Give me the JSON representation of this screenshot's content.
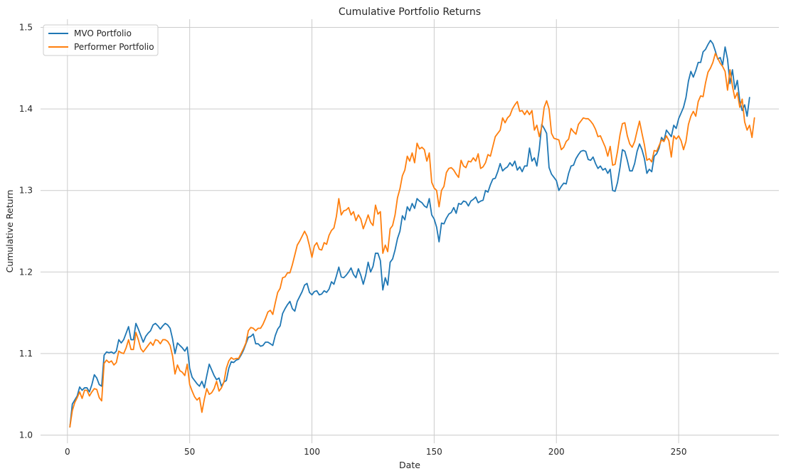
{
  "chart_data": {
    "type": "line",
    "title": "Cumulative Portfolio Returns",
    "xlabel": "Date",
    "ylabel": "Cumulative Return",
    "xlim": [
      -11,
      291
    ],
    "ylim": [
      0.99,
      1.51
    ],
    "xticks": [
      0,
      50,
      100,
      150,
      200,
      250
    ],
    "yticks": [
      1.0,
      1.1,
      1.2,
      1.3,
      1.4,
      1.5
    ],
    "ytick_labels": [
      "1.0",
      "1.1",
      "1.2",
      "1.3",
      "1.4",
      "1.5"
    ],
    "grid": true,
    "legend_position": "top-left",
    "x_start": 1,
    "x_step": 1,
    "series": [
      {
        "name": "MVO Portfolio",
        "color": "#1f77b4",
        "values": [
          1.01,
          1.038,
          1.043,
          1.048,
          1.059,
          1.055,
          1.058,
          1.058,
          1.053,
          1.062,
          1.074,
          1.07,
          1.062,
          1.06,
          1.098,
          1.102,
          1.101,
          1.102,
          1.1,
          1.103,
          1.117,
          1.113,
          1.117,
          1.125,
          1.133,
          1.117,
          1.117,
          1.137,
          1.13,
          1.122,
          1.114,
          1.121,
          1.125,
          1.128,
          1.135,
          1.137,
          1.134,
          1.13,
          1.134,
          1.137,
          1.135,
          1.131,
          1.118,
          1.1,
          1.113,
          1.11,
          1.107,
          1.103,
          1.108,
          1.082,
          1.071,
          1.067,
          1.063,
          1.06,
          1.066,
          1.058,
          1.073,
          1.087,
          1.08,
          1.073,
          1.068,
          1.07,
          1.06,
          1.065,
          1.067,
          1.082,
          1.09,
          1.089,
          1.092,
          1.093,
          1.098,
          1.104,
          1.112,
          1.12,
          1.121,
          1.124,
          1.112,
          1.112,
          1.109,
          1.11,
          1.114,
          1.114,
          1.112,
          1.11,
          1.122,
          1.13,
          1.134,
          1.149,
          1.155,
          1.16,
          1.164,
          1.155,
          1.152,
          1.164,
          1.17,
          1.176,
          1.184,
          1.186,
          1.175,
          1.172,
          1.176,
          1.177,
          1.172,
          1.173,
          1.177,
          1.175,
          1.179,
          1.188,
          1.185,
          1.195,
          1.206,
          1.194,
          1.193,
          1.196,
          1.2,
          1.205,
          1.197,
          1.193,
          1.204,
          1.196,
          1.185,
          1.196,
          1.212,
          1.2,
          1.207,
          1.223,
          1.223,
          1.214,
          1.178,
          1.193,
          1.184,
          1.212,
          1.216,
          1.227,
          1.241,
          1.25,
          1.269,
          1.264,
          1.28,
          1.275,
          1.284,
          1.278,
          1.29,
          1.287,
          1.285,
          1.281,
          1.279,
          1.29,
          1.27,
          1.265,
          1.255,
          1.237,
          1.26,
          1.259,
          1.266,
          1.271,
          1.273,
          1.279,
          1.272,
          1.284,
          1.283,
          1.287,
          1.286,
          1.281,
          1.287,
          1.289,
          1.292,
          1.285,
          1.287,
          1.288,
          1.3,
          1.298,
          1.307,
          1.314,
          1.315,
          1.323,
          1.333,
          1.324,
          1.327,
          1.329,
          1.334,
          1.33,
          1.336,
          1.325,
          1.329,
          1.323,
          1.33,
          1.33,
          1.352,
          1.336,
          1.34,
          1.33,
          1.351,
          1.381,
          1.376,
          1.37,
          1.328,
          1.32,
          1.316,
          1.312,
          1.3,
          1.305,
          1.309,
          1.308,
          1.321,
          1.33,
          1.331,
          1.339,
          1.344,
          1.348,
          1.349,
          1.348,
          1.338,
          1.337,
          1.341,
          1.333,
          1.327,
          1.33,
          1.325,
          1.327,
          1.321,
          1.326,
          1.3,
          1.299,
          1.31,
          1.328,
          1.35,
          1.348,
          1.337,
          1.324,
          1.324,
          1.333,
          1.348,
          1.357,
          1.35,
          1.339,
          1.321,
          1.326,
          1.323,
          1.342,
          1.345,
          1.352,
          1.365,
          1.361,
          1.374,
          1.37,
          1.366,
          1.38,
          1.376,
          1.388,
          1.395,
          1.402,
          1.414,
          1.434,
          1.446,
          1.439,
          1.447,
          1.457,
          1.457,
          1.47,
          1.473,
          1.479,
          1.484,
          1.48,
          1.471,
          1.461,
          1.463,
          1.454,
          1.476,
          1.461,
          1.431,
          1.448,
          1.424,
          1.435,
          1.41,
          1.398,
          1.405,
          1.391,
          1.414
        ]
      },
      {
        "name": "Performer Portfolio",
        "color": "#ff7f0e",
        "values": [
          1.01,
          1.03,
          1.04,
          1.046,
          1.053,
          1.045,
          1.055,
          1.055,
          1.048,
          1.053,
          1.057,
          1.056,
          1.046,
          1.042,
          1.088,
          1.092,
          1.089,
          1.091,
          1.086,
          1.089,
          1.103,
          1.101,
          1.1,
          1.107,
          1.117,
          1.105,
          1.105,
          1.126,
          1.117,
          1.106,
          1.102,
          1.106,
          1.11,
          1.114,
          1.11,
          1.117,
          1.116,
          1.112,
          1.117,
          1.117,
          1.115,
          1.11,
          1.097,
          1.075,
          1.086,
          1.079,
          1.077,
          1.073,
          1.087,
          1.062,
          1.054,
          1.047,
          1.043,
          1.046,
          1.028,
          1.044,
          1.057,
          1.05,
          1.052,
          1.057,
          1.066,
          1.054,
          1.058,
          1.065,
          1.082,
          1.091,
          1.095,
          1.093,
          1.094,
          1.094,
          1.1,
          1.106,
          1.113,
          1.128,
          1.132,
          1.131,
          1.128,
          1.131,
          1.131,
          1.136,
          1.143,
          1.151,
          1.153,
          1.148,
          1.162,
          1.175,
          1.18,
          1.193,
          1.194,
          1.199,
          1.199,
          1.209,
          1.221,
          1.233,
          1.238,
          1.244,
          1.25,
          1.244,
          1.232,
          1.218,
          1.232,
          1.236,
          1.228,
          1.227,
          1.236,
          1.234,
          1.245,
          1.251,
          1.254,
          1.268,
          1.29,
          1.27,
          1.275,
          1.276,
          1.279,
          1.27,
          1.274,
          1.263,
          1.27,
          1.265,
          1.253,
          1.261,
          1.27,
          1.261,
          1.257,
          1.282,
          1.271,
          1.274,
          1.223,
          1.233,
          1.225,
          1.253,
          1.257,
          1.27,
          1.291,
          1.302,
          1.318,
          1.325,
          1.342,
          1.336,
          1.346,
          1.334,
          1.358,
          1.351,
          1.353,
          1.35,
          1.336,
          1.346,
          1.31,
          1.303,
          1.3,
          1.28,
          1.3,
          1.305,
          1.322,
          1.327,
          1.328,
          1.325,
          1.32,
          1.316,
          1.337,
          1.33,
          1.328,
          1.336,
          1.335,
          1.34,
          1.336,
          1.345,
          1.327,
          1.329,
          1.334,
          1.344,
          1.342,
          1.354,
          1.366,
          1.37,
          1.374,
          1.389,
          1.383,
          1.389,
          1.392,
          1.4,
          1.405,
          1.409,
          1.397,
          1.398,
          1.393,
          1.398,
          1.393,
          1.398,
          1.374,
          1.38,
          1.366,
          1.378,
          1.402,
          1.41,
          1.4,
          1.37,
          1.364,
          1.363,
          1.362,
          1.35,
          1.353,
          1.36,
          1.363,
          1.376,
          1.372,
          1.369,
          1.381,
          1.385,
          1.389,
          1.388,
          1.388,
          1.385,
          1.381,
          1.375,
          1.366,
          1.367,
          1.36,
          1.353,
          1.342,
          1.354,
          1.331,
          1.332,
          1.348,
          1.368,
          1.382,
          1.383,
          1.367,
          1.357,
          1.353,
          1.36,
          1.373,
          1.385,
          1.37,
          1.356,
          1.337,
          1.339,
          1.335,
          1.349,
          1.348,
          1.355,
          1.362,
          1.36,
          1.367,
          1.361,
          1.341,
          1.367,
          1.363,
          1.367,
          1.361,
          1.35,
          1.36,
          1.381,
          1.391,
          1.397,
          1.391,
          1.409,
          1.416,
          1.415,
          1.432,
          1.445,
          1.45,
          1.457,
          1.468,
          1.462,
          1.456,
          1.452,
          1.446,
          1.423,
          1.448,
          1.428,
          1.413,
          1.42,
          1.402,
          1.412,
          1.384,
          1.374,
          1.38,
          1.365,
          1.389
        ]
      }
    ]
  }
}
